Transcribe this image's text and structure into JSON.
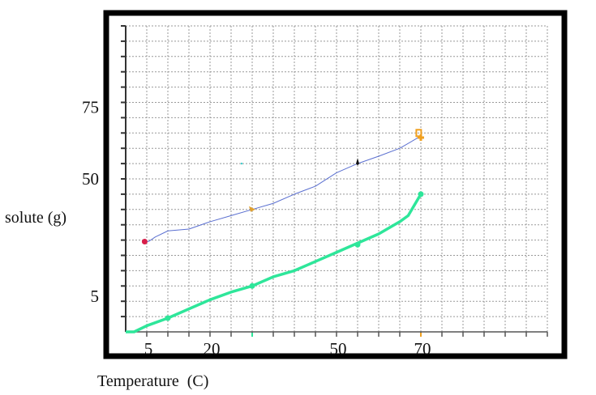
{
  "chart_data": {
    "type": "line",
    "title": "",
    "xlabel": "Temperature  (C)",
    "ylabel": "solute (g)",
    "xlim": [
      0,
      100
    ],
    "ylim": [
      0,
      100
    ],
    "grid": true,
    "x_tick_labels": [
      {
        "value": 5,
        "label": "5"
      },
      {
        "value": 20,
        "label": "20"
      },
      {
        "value": 50,
        "label": "50"
      },
      {
        "value": 70,
        "label": "70"
      }
    ],
    "y_tick_labels": [
      {
        "value": 75,
        "label": "75"
      },
      {
        "value": 50,
        "label": "50"
      },
      {
        "value": 5,
        "label": "5"
      }
    ],
    "series": [
      {
        "color": "#5a6fd0",
        "x": [
          5,
          5.5,
          7,
          10,
          15,
          20,
          25,
          30,
          35,
          40,
          45,
          50,
          55,
          60,
          65,
          70
        ],
        "y": [
          29.5,
          29.6,
          31,
          33,
          33.6,
          36,
          38,
          40,
          42,
          45,
          47.6,
          52,
          55,
          57.4,
          60,
          64
        ]
      },
      {
        "color": "#2ee69a",
        "x": [
          0,
          2,
          5,
          10,
          15,
          20,
          25,
          30,
          35,
          40,
          45,
          50,
          55,
          60,
          65,
          67,
          70
        ],
        "y": [
          0,
          0,
          2,
          4.5,
          7.5,
          10.5,
          13,
          15,
          18,
          20,
          23,
          26,
          29,
          32,
          36,
          38,
          45
        ]
      }
    ],
    "markers": [
      {
        "x": 4.5,
        "y": 29.5,
        "color": "#d81e4a",
        "shape": "circle"
      },
      {
        "x": 30,
        "y": 40,
        "color": "#e0a030",
        "shape": "triangle"
      },
      {
        "x": 55,
        "y": 55.5,
        "color": "#111111",
        "shape": "arrow"
      },
      {
        "x": 69.5,
        "y": 65,
        "color": "#f0a020",
        "shape": "square"
      },
      {
        "x": 70,
        "y": 63.5,
        "color": "#f0a020",
        "shape": "cross"
      },
      {
        "x": 27.5,
        "y": 55,
        "color": "#40d0d0",
        "shape": "dot"
      },
      {
        "x": 10,
        "y": 4.5,
        "color": "#2ee69a",
        "shape": "circle"
      },
      {
        "x": 30,
        "y": 15,
        "color": "#2ee69a",
        "shape": "circle"
      },
      {
        "x": 55,
        "y": 28.5,
        "color": "#2ee69a",
        "shape": "circle"
      },
      {
        "x": 70,
        "y": 45,
        "color": "#2ee69a",
        "shape": "circle"
      }
    ],
    "frame_color": "#000000"
  }
}
